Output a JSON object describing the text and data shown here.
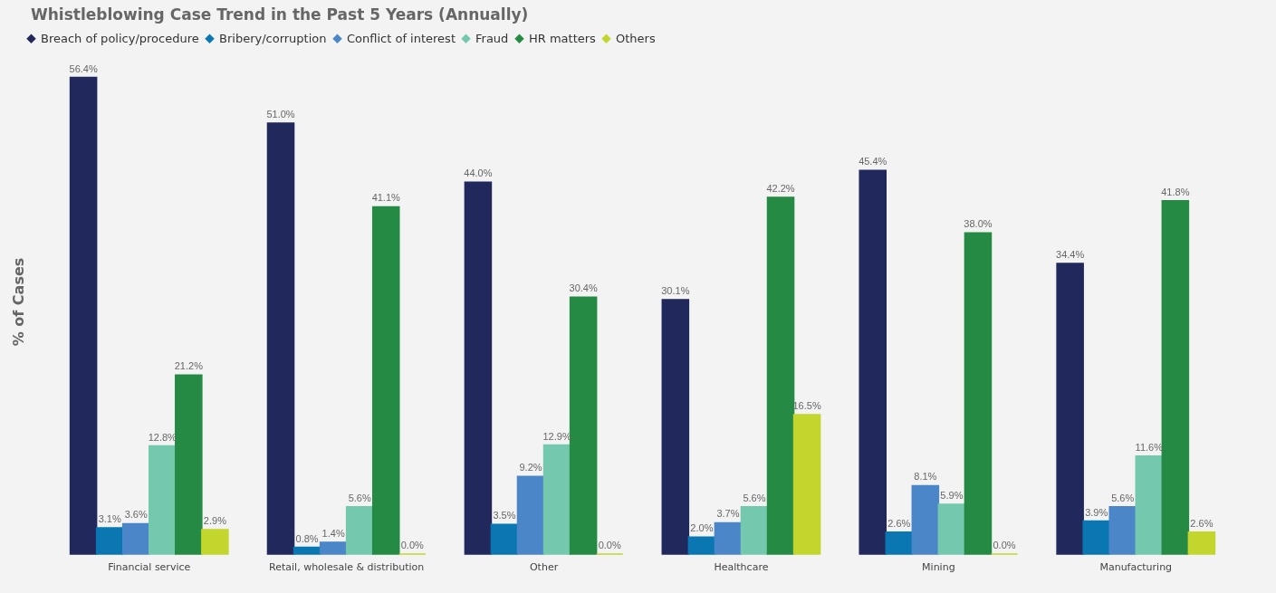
{
  "chart_data": {
    "type": "bar",
    "title": "Whistleblowing Case Trend in the Past 5 Years (Annually)",
    "ylabel": "% of Cases",
    "legend": "top left",
    "categories": [
      "Financial service",
      "Retail, wholesale & distribution",
      "Other",
      "Healthcare",
      "Mining",
      "Manufacturing"
    ],
    "series": [
      {
        "name": "Breach of policy/procedure",
        "color": "#21295c",
        "values": [
          56.4,
          51.0,
          44.0,
          30.1,
          45.4,
          34.4
        ],
        "value_labels": [
          "56.4%",
          "51.0%",
          "44.0%",
          "30.1%",
          "45.4%",
          "34.4%"
        ]
      },
      {
        "name": "Bribery/corruption",
        "color": "#0a77b3",
        "values": [
          3.1,
          0.8,
          3.5,
          2.0,
          2.6,
          3.9
        ],
        "value_labels": [
          "3.1%",
          "0.8%",
          "3.5%",
          "2.0%",
          "2.6%",
          "3.9%"
        ]
      },
      {
        "name": "Conflict of interest",
        "color": "#4a86c8",
        "values": [
          3.6,
          1.4,
          9.2,
          3.7,
          8.1,
          5.6
        ],
        "value_labels": [
          "3.6%",
          "1.4%",
          "9.2%",
          "3.7%",
          "8.1%",
          "5.6%"
        ]
      },
      {
        "name": "Fraud",
        "color": "#74c8ae",
        "values": [
          12.8,
          5.6,
          12.9,
          5.6,
          5.9,
          11.6
        ],
        "value_labels": [
          "12.8%",
          "5.6%",
          "12.9%",
          "5.6%",
          "5.9%",
          "11.6%"
        ]
      },
      {
        "name": "HR matters",
        "color": "#258a44",
        "values": [
          21.2,
          41.1,
          30.4,
          42.2,
          38.0,
          41.8
        ],
        "value_labels": [
          "21.2%",
          "41.1%",
          "30.4%",
          "42.2%",
          "38.0%",
          "41.8%"
        ]
      },
      {
        "name": "Others",
        "color": "#c2d62e",
        "values": [
          2.9,
          0.0,
          0.0,
          16.5,
          0.0,
          2.6
        ],
        "value_labels": [
          "2.9%",
          "0.0%",
          "0.0%",
          "16.5%",
          "0.0%",
          "2.6%"
        ]
      }
    ]
  }
}
